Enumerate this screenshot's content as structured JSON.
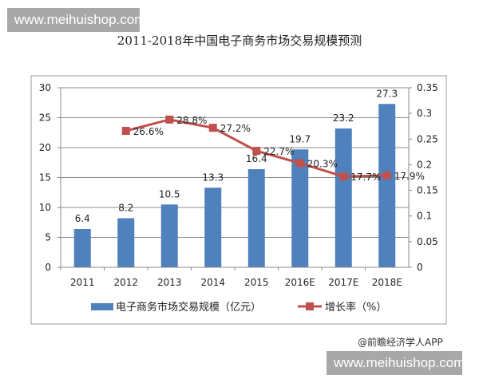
{
  "watermark_top": "www.meihuishop.com",
  "watermark_bottom": "www.meihuishop.com",
  "credit": "@前瞻经济学人APP",
  "chart_data": {
    "type": "bar+line",
    "title": "2011-2018年中国电子商务市场交易规模预测",
    "categories": [
      "2011",
      "2012",
      "2013",
      "2014",
      "2015",
      "2016E",
      "2017E",
      "2018E"
    ],
    "series": [
      {
        "name": "电子商务市场交易规模（亿元）",
        "type": "bar",
        "axis": "left",
        "color": "#4f81bd",
        "values": [
          6.4,
          8.2,
          10.5,
          13.3,
          16.4,
          19.7,
          23.2,
          27.3
        ],
        "labels": [
          "6.4",
          "8.2",
          "10.5",
          "13.3",
          "16.4",
          "19.7",
          "23.2",
          "27.3"
        ]
      },
      {
        "name": "增长率（%）",
        "type": "line",
        "axis": "right",
        "color": "#c0504d",
        "values": [
          null,
          0.266,
          0.288,
          0.272,
          0.227,
          0.203,
          0.177,
          0.179
        ],
        "labels": [
          "",
          "26.6%",
          "28.8%",
          "27.2%",
          "22.7%",
          "20.3%",
          "17.7%",
          "17.9%"
        ]
      }
    ],
    "y_left": {
      "min": 0,
      "max": 30,
      "ticks": [
        "0",
        "5",
        "10",
        "15",
        "20",
        "25",
        "30"
      ]
    },
    "y_right": {
      "min": 0,
      "max": 0.35,
      "ticks": [
        "0",
        "0.05",
        "0.1",
        "0.15",
        "0.2",
        "0.25",
        "0.3",
        "0.35"
      ]
    },
    "grid": true,
    "legend_position": "bottom",
    "xlabel": "",
    "ylabel": ""
  }
}
